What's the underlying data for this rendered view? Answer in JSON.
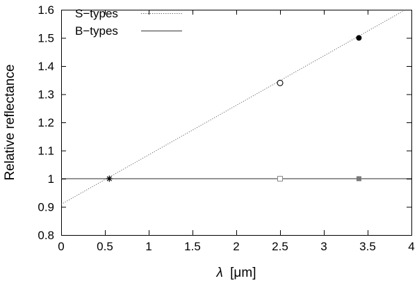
{
  "chart_data": {
    "type": "line",
    "title": "",
    "xlabel_symbol": "λ",
    "xlabel_unit": "[μm]",
    "ylabel": "Relative reflectance",
    "xlim": [
      0,
      4
    ],
    "ylim": [
      0.8,
      1.6
    ],
    "x_ticks": [
      0,
      0.5,
      1,
      1.5,
      2,
      2.5,
      3,
      3.5,
      4
    ],
    "x_tick_labels": [
      "0",
      "0.5",
      "1",
      "1.5",
      "2",
      "2.5",
      "3",
      "3.5",
      "4"
    ],
    "y_ticks": [
      0.8,
      0.9,
      1.0,
      1.1,
      1.2,
      1.3,
      1.4,
      1.5,
      1.6
    ],
    "y_tick_labels": [
      "0.8",
      "0.9",
      "1",
      "1.1",
      "1.2",
      "1.3",
      "1.4",
      "1.5",
      "1.6"
    ],
    "grid": false,
    "legend_position": "top-left",
    "series": [
      {
        "name": "S−types",
        "style": "dotted",
        "color": "#555555",
        "line": {
          "x": [
            0,
            4
          ],
          "y": [
            0.909,
            1.612
          ]
        },
        "points": [
          {
            "x": 0.55,
            "y": 1.0,
            "marker": "asterisk"
          },
          {
            "x": 2.5,
            "y": 1.34,
            "marker": "open-circle"
          },
          {
            "x": 3.4,
            "y": 1.5,
            "marker": "filled-circle"
          }
        ]
      },
      {
        "name": "B−types",
        "style": "solid",
        "color": "#555555",
        "line": {
          "x": [
            0,
            4
          ],
          "y": [
            1.0,
            1.0
          ]
        },
        "points": [
          {
            "x": 2.5,
            "y": 1.0,
            "marker": "open-square"
          },
          {
            "x": 3.4,
            "y": 1.0,
            "marker": "filled-square"
          }
        ]
      }
    ]
  }
}
